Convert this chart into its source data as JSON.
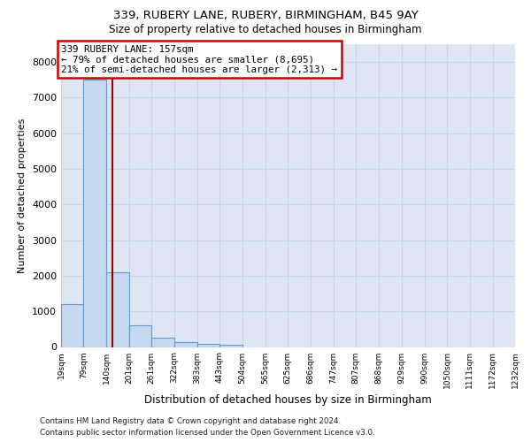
{
  "title1": "339, RUBERY LANE, RUBERY, BIRMINGHAM, B45 9AY",
  "title2": "Size of property relative to detached houses in Birmingham",
  "xlabel": "Distribution of detached houses by size in Birmingham",
  "ylabel": "Number of detached properties",
  "footnote1": "Contains HM Land Registry data © Crown copyright and database right 2024.",
  "footnote2": "Contains public sector information licensed under the Open Government Licence v3.0.",
  "property_label": "339 RUBERY LANE: 157sqm",
  "annotation_line1": "← 79% of detached houses are smaller (8,695)",
  "annotation_line2": "21% of semi-detached houses are larger (2,313) →",
  "property_size": 157,
  "bar_color": "#c5d8ee",
  "bar_edge_color": "#6699cc",
  "vline_color": "#990000",
  "annotation_edge_color": "#cc0000",
  "grid_color": "#c8d4e8",
  "bg_color": "#dde6f2",
  "bins": [
    19,
    79,
    140,
    201,
    261,
    322,
    383,
    443,
    504,
    565,
    625,
    686,
    747,
    807,
    868,
    929,
    990,
    1050,
    1111,
    1172,
    1232
  ],
  "counts": [
    1200,
    7500,
    2100,
    600,
    250,
    130,
    80,
    50,
    0,
    0,
    0,
    0,
    0,
    0,
    0,
    0,
    0,
    0,
    0,
    0
  ],
  "ylim": [
    0,
    8500
  ],
  "yticks": [
    0,
    1000,
    2000,
    3000,
    4000,
    5000,
    6000,
    7000,
    8000
  ]
}
